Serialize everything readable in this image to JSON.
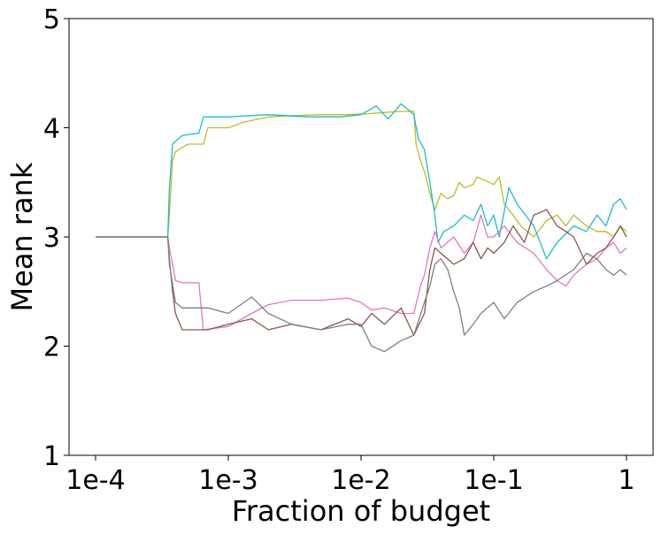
{
  "chart_data": {
    "type": "line",
    "title": "",
    "xlabel": "Fraction of budget",
    "ylabel": "Mean rank",
    "x_scale": "log",
    "xlim": [
      0.0001,
      1
    ],
    "ylim": [
      1,
      5
    ],
    "x_ticks": [
      {
        "value": 0.0001,
        "label": "1e-4"
      },
      {
        "value": 0.001,
        "label": "1e-3"
      },
      {
        "value": 0.01,
        "label": "1e-2"
      },
      {
        "value": 0.1,
        "label": "1e-1"
      },
      {
        "value": 1,
        "label": "1"
      }
    ],
    "y_ticks": [
      {
        "value": 1,
        "label": "1"
      },
      {
        "value": 2,
        "label": "2"
      },
      {
        "value": 3,
        "label": "3"
      },
      {
        "value": 4,
        "label": "4"
      },
      {
        "value": 5,
        "label": "5"
      }
    ],
    "grid": false,
    "legend": "none",
    "series": [
      {
        "color": "#bcbd22",
        "points": [
          [
            0.0001,
            3.0
          ],
          [
            0.00035,
            3.0
          ],
          [
            0.00036,
            3.2
          ],
          [
            0.00038,
            3.7
          ],
          [
            0.0004,
            3.78
          ],
          [
            0.00045,
            3.82
          ],
          [
            0.0005,
            3.85
          ],
          [
            0.00065,
            3.85
          ],
          [
            0.0007,
            4.0
          ],
          [
            0.001,
            4.0
          ],
          [
            0.0013,
            4.05
          ],
          [
            0.002,
            4.1
          ],
          [
            0.003,
            4.11
          ],
          [
            0.005,
            4.12
          ],
          [
            0.008,
            4.12
          ],
          [
            0.012,
            4.13
          ],
          [
            0.015,
            4.14
          ],
          [
            0.02,
            4.15
          ],
          [
            0.025,
            4.15
          ],
          [
            0.026,
            3.85
          ],
          [
            0.028,
            3.7
          ],
          [
            0.03,
            3.6
          ],
          [
            0.033,
            3.4
          ],
          [
            0.036,
            3.25
          ],
          [
            0.04,
            3.4
          ],
          [
            0.045,
            3.35
          ],
          [
            0.05,
            3.38
          ],
          [
            0.055,
            3.5
          ],
          [
            0.06,
            3.45
          ],
          [
            0.07,
            3.48
          ],
          [
            0.075,
            3.55
          ],
          [
            0.085,
            3.52
          ],
          [
            0.1,
            3.48
          ],
          [
            0.11,
            3.55
          ],
          [
            0.12,
            3.3
          ],
          [
            0.14,
            3.2
          ],
          [
            0.16,
            3.1
          ],
          [
            0.2,
            3.0
          ],
          [
            0.25,
            3.15
          ],
          [
            0.3,
            3.2
          ],
          [
            0.35,
            3.1
          ],
          [
            0.4,
            3.2
          ],
          [
            0.5,
            3.1
          ],
          [
            0.6,
            3.05
          ],
          [
            0.7,
            3.05
          ],
          [
            0.8,
            3.0
          ],
          [
            0.9,
            3.1
          ],
          [
            1,
            3.05
          ]
        ]
      },
      {
        "color": "#17becf",
        "points": [
          [
            0.0001,
            3.0
          ],
          [
            0.00035,
            3.0
          ],
          [
            0.00036,
            3.45
          ],
          [
            0.00038,
            3.85
          ],
          [
            0.00045,
            3.93
          ],
          [
            0.0006,
            3.95
          ],
          [
            0.00065,
            4.1
          ],
          [
            0.001,
            4.1
          ],
          [
            0.002,
            4.12
          ],
          [
            0.004,
            4.1
          ],
          [
            0.007,
            4.1
          ],
          [
            0.01,
            4.12
          ],
          [
            0.013,
            4.2
          ],
          [
            0.016,
            4.08
          ],
          [
            0.02,
            4.22
          ],
          [
            0.025,
            4.12
          ],
          [
            0.027,
            3.9
          ],
          [
            0.03,
            3.8
          ],
          [
            0.033,
            3.5
          ],
          [
            0.036,
            3.2
          ],
          [
            0.038,
            2.95
          ],
          [
            0.042,
            3.05
          ],
          [
            0.05,
            3.1
          ],
          [
            0.06,
            3.2
          ],
          [
            0.07,
            3.15
          ],
          [
            0.08,
            3.3
          ],
          [
            0.09,
            3.1
          ],
          [
            0.1,
            3.2
          ],
          [
            0.11,
            3.0
          ],
          [
            0.13,
            3.45
          ],
          [
            0.15,
            3.3
          ],
          [
            0.2,
            3.1
          ],
          [
            0.25,
            2.8
          ],
          [
            0.3,
            2.95
          ],
          [
            0.4,
            3.1
          ],
          [
            0.5,
            3.05
          ],
          [
            0.6,
            3.2
          ],
          [
            0.7,
            3.1
          ],
          [
            0.8,
            3.3
          ],
          [
            0.9,
            3.35
          ],
          [
            1,
            3.25
          ]
        ]
      },
      {
        "color": "#e377c2",
        "points": [
          [
            0.0001,
            3.0
          ],
          [
            0.00035,
            3.0
          ],
          [
            0.00036,
            2.9
          ],
          [
            0.00038,
            2.75
          ],
          [
            0.0004,
            2.6
          ],
          [
            0.00045,
            2.58
          ],
          [
            0.0006,
            2.58
          ],
          [
            0.00065,
            2.15
          ],
          [
            0.001,
            2.18
          ],
          [
            0.0015,
            2.3
          ],
          [
            0.002,
            2.38
          ],
          [
            0.003,
            2.42
          ],
          [
            0.005,
            2.42
          ],
          [
            0.008,
            2.44
          ],
          [
            0.01,
            2.4
          ],
          [
            0.012,
            2.33
          ],
          [
            0.015,
            2.35
          ],
          [
            0.02,
            2.3
          ],
          [
            0.025,
            2.3
          ],
          [
            0.028,
            2.55
          ],
          [
            0.03,
            2.65
          ],
          [
            0.033,
            2.9
          ],
          [
            0.036,
            3.05
          ],
          [
            0.04,
            2.9
          ],
          [
            0.05,
            3.0
          ],
          [
            0.06,
            2.85
          ],
          [
            0.07,
            2.95
          ],
          [
            0.08,
            3.2
          ],
          [
            0.09,
            3.0
          ],
          [
            0.1,
            3.0
          ],
          [
            0.12,
            3.1
          ],
          [
            0.15,
            2.95
          ],
          [
            0.2,
            2.85
          ],
          [
            0.25,
            2.7
          ],
          [
            0.3,
            2.6
          ],
          [
            0.35,
            2.55
          ],
          [
            0.4,
            2.65
          ],
          [
            0.5,
            2.75
          ],
          [
            0.6,
            2.8
          ],
          [
            0.7,
            2.9
          ],
          [
            0.8,
            2.95
          ],
          [
            0.9,
            2.85
          ],
          [
            1,
            2.9
          ]
        ]
      },
      {
        "color": "#8c564b",
        "points": [
          [
            0.0001,
            3.0
          ],
          [
            0.00035,
            3.0
          ],
          [
            0.00036,
            2.8
          ],
          [
            0.00038,
            2.5
          ],
          [
            0.0004,
            2.3
          ],
          [
            0.00045,
            2.15
          ],
          [
            0.0007,
            2.15
          ],
          [
            0.001,
            2.2
          ],
          [
            0.0015,
            2.25
          ],
          [
            0.002,
            2.15
          ],
          [
            0.003,
            2.2
          ],
          [
            0.005,
            2.15
          ],
          [
            0.008,
            2.25
          ],
          [
            0.01,
            2.18
          ],
          [
            0.012,
            2.3
          ],
          [
            0.015,
            2.2
          ],
          [
            0.02,
            2.35
          ],
          [
            0.025,
            2.1
          ],
          [
            0.03,
            2.3
          ],
          [
            0.033,
            2.7
          ],
          [
            0.036,
            2.9
          ],
          [
            0.04,
            2.85
          ],
          [
            0.05,
            2.75
          ],
          [
            0.06,
            2.8
          ],
          [
            0.07,
            2.95
          ],
          [
            0.08,
            2.8
          ],
          [
            0.09,
            2.9
          ],
          [
            0.1,
            2.85
          ],
          [
            0.12,
            2.95
          ],
          [
            0.14,
            3.1
          ],
          [
            0.17,
            2.95
          ],
          [
            0.2,
            3.2
          ],
          [
            0.25,
            3.25
          ],
          [
            0.3,
            3.1
          ],
          [
            0.35,
            3.05
          ],
          [
            0.4,
            3.0
          ],
          [
            0.5,
            2.75
          ],
          [
            0.6,
            2.85
          ],
          [
            0.7,
            2.9
          ],
          [
            0.8,
            3.0
          ],
          [
            0.9,
            3.1
          ],
          [
            1,
            3.0
          ]
        ]
      },
      {
        "color": "#7f7f7f",
        "points": [
          [
            0.0001,
            3.0
          ],
          [
            0.00035,
            3.0
          ],
          [
            0.00036,
            2.75
          ],
          [
            0.0004,
            2.4
          ],
          [
            0.00045,
            2.35
          ],
          [
            0.0007,
            2.35
          ],
          [
            0.001,
            2.3
          ],
          [
            0.0015,
            2.45
          ],
          [
            0.002,
            2.3
          ],
          [
            0.003,
            2.2
          ],
          [
            0.005,
            2.15
          ],
          [
            0.008,
            2.2
          ],
          [
            0.01,
            2.2
          ],
          [
            0.012,
            2.0
          ],
          [
            0.015,
            1.95
          ],
          [
            0.02,
            2.05
          ],
          [
            0.025,
            2.1
          ],
          [
            0.03,
            2.4
          ],
          [
            0.033,
            2.55
          ],
          [
            0.036,
            2.75
          ],
          [
            0.04,
            2.8
          ],
          [
            0.045,
            2.7
          ],
          [
            0.05,
            2.5
          ],
          [
            0.055,
            2.35
          ],
          [
            0.06,
            2.1
          ],
          [
            0.07,
            2.2
          ],
          [
            0.08,
            2.3
          ],
          [
            0.1,
            2.4
          ],
          [
            0.12,
            2.25
          ],
          [
            0.15,
            2.4
          ],
          [
            0.2,
            2.5
          ],
          [
            0.25,
            2.55
          ],
          [
            0.3,
            2.6
          ],
          [
            0.4,
            2.7
          ],
          [
            0.5,
            2.85
          ],
          [
            0.6,
            2.8
          ],
          [
            0.7,
            2.7
          ],
          [
            0.8,
            2.65
          ],
          [
            0.9,
            2.7
          ],
          [
            1,
            2.65
          ]
        ]
      }
    ]
  }
}
